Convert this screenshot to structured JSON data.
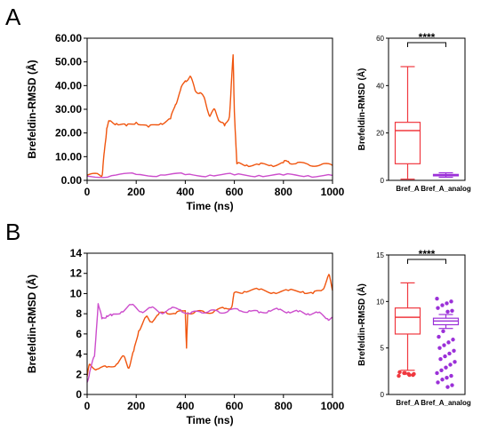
{
  "panels": [
    {
      "letter": "A",
      "line_chart": {
        "type": "line",
        "xlabel": "Time (ns)",
        "ylabel": "Brefeldin-RMSD (Å)",
        "xlim": [
          0,
          1000
        ],
        "ylim": [
          0,
          60
        ],
        "xticks": [
          "0",
          "200",
          "400",
          "600",
          "800",
          "1000"
        ],
        "yticks": [
          "0.00",
          "10.00",
          "20.00",
          "30.00",
          "40.00",
          "50.00",
          "60.00"
        ],
        "grid": false,
        "series": [
          {
            "color": "#f0550f",
            "x": [
              0,
              50,
              62,
              70,
              80,
              90,
              120,
              160,
              200,
              250,
              300,
              340,
              360,
              380,
              400,
              420,
              440,
              460,
              480,
              500,
              520,
              540,
              560,
              580,
              595,
              600,
              610,
              650,
              700,
              750,
              800,
              820,
              850,
              900,
              950,
              1000
            ],
            "y": [
              2.2,
              2.3,
              2.5,
              12,
              22,
              25,
              24,
              23,
              24.5,
              22.5,
              24,
              26,
              32,
              38,
              42,
              44,
              38,
              37,
              34,
              27,
              30,
              25,
              23,
              27,
              53,
              29,
              7,
              6.5,
              6.6,
              6.4,
              7.5,
              8,
              7,
              6.8,
              6.5,
              6.3
            ]
          },
          {
            "color": "#cc4dcc",
            "x": [
              0,
              100,
              200,
              300,
              400,
              500,
              600,
              700,
              800,
              900,
              1000
            ],
            "y": [
              1.8,
              2.0,
              2.5,
              2.3,
              2.4,
              2.2,
              2.3,
              2.1,
              2.2,
              2.0,
              2.1
            ]
          }
        ]
      },
      "box_chart": {
        "type": "box",
        "ylabel": "Brefeldin-RMSD (Å)",
        "ylim": [
          0,
          60
        ],
        "yticks": [
          "0",
          "20",
          "40",
          "60"
        ],
        "categories": [
          "Bref_A",
          "Bref_A_analog"
        ],
        "boxes": [
          {
            "color": "#f0383f",
            "min": 0.5,
            "q1": 7,
            "median": 21,
            "q3": 24.5,
            "max": 48,
            "outliers": []
          },
          {
            "color": "#9b30d8",
            "min": 1.3,
            "q1": 1.9,
            "median": 2.2,
            "q3": 2.5,
            "max": 3.2,
            "outliers": []
          }
        ],
        "significance": "****"
      }
    },
    {
      "letter": "B",
      "line_chart": {
        "type": "line",
        "xlabel": "Time (ns)",
        "ylabel": "Brefeldin-RMSD (Å)",
        "xlim": [
          0,
          1000
        ],
        "ylim": [
          0,
          14
        ],
        "xticks": [
          "0",
          "200",
          "400",
          "600",
          "800",
          "1000"
        ],
        "yticks": [
          "0",
          "2",
          "4",
          "6",
          "8",
          "10",
          "12",
          "14"
        ],
        "grid": false,
        "series": [
          {
            "color": "#f0550f",
            "x": [
              0,
              10,
              40,
              80,
              120,
              150,
              170,
              190,
              210,
              240,
              260,
              290,
              320,
              360,
              400,
              405,
              410,
              440,
              480,
              520,
              560,
              590,
              600,
              640,
              700,
              760,
              820,
              880,
              920,
              960,
              985,
              1000
            ],
            "y": [
              1.8,
              3.0,
              2.5,
              2.7,
              3.0,
              3.8,
              2.6,
              4.3,
              6.3,
              7.7,
              7.2,
              7.9,
              8.2,
              8.0,
              8.3,
              4.6,
              8.1,
              8.2,
              8.1,
              8.3,
              8.5,
              8.7,
              10.1,
              10.2,
              10.4,
              10.1,
              10.3,
              10.2,
              10.0,
              10.4,
              11.9,
              10.3
            ]
          },
          {
            "color": "#cc4dcc",
            "x": [
              0,
              10,
              30,
              45,
              60,
              80,
              100,
              140,
              180,
              220,
              260,
              300,
              340,
              380,
              420,
              460,
              500,
              540,
              580,
              620,
              660,
              700,
              740,
              780,
              820,
              860,
              900,
              940,
              980,
              1000
            ],
            "y": [
              1.2,
              2.2,
              3.8,
              9.0,
              7.5,
              7.8,
              7.8,
              8.2,
              8.9,
              8.2,
              8.6,
              8.1,
              8.5,
              8.4,
              8.0,
              8.2,
              8.3,
              8.1,
              8.4,
              8.3,
              8.3,
              8.1,
              8.3,
              8.4,
              8.2,
              8.2,
              8.0,
              8.1,
              7.5,
              7.6
            ]
          }
        ]
      },
      "box_chart": {
        "type": "box",
        "ylabel": "Brefeldin-RMSD (Å)",
        "ylim": [
          0,
          15
        ],
        "yticks": [
          "0",
          "5",
          "10",
          "15"
        ],
        "categories": [
          "Bref_A",
          "Bref_A_analog"
        ],
        "boxes": [
          {
            "color": "#f0383f",
            "min": 2.6,
            "q1": 6.5,
            "median": 8.3,
            "q3": 9.3,
            "max": 12,
            "outliers": [
              2.0,
              2.1,
              2.2,
              2.3,
              2.4,
              2.2,
              2.1,
              2.3
            ]
          },
          {
            "color": "#9b30d8",
            "min": 7.1,
            "q1": 7.5,
            "median": 7.9,
            "q3": 8.2,
            "max": 8.6,
            "outliers": [
              10.3,
              10.0,
              9.8,
              9.6,
              9.3,
              9.0,
              8.9,
              6.8,
              6.2,
              5.9,
              5.6,
              5.3,
              5.0,
              4.7,
              4.4,
              4.1,
              3.8,
              3.5,
              3.2,
              2.9,
              2.6,
              2.3,
              2.0,
              1.8,
              1.6,
              1.3,
              1.0,
              0.8
            ]
          }
        ],
        "significance": "****"
      }
    }
  ]
}
